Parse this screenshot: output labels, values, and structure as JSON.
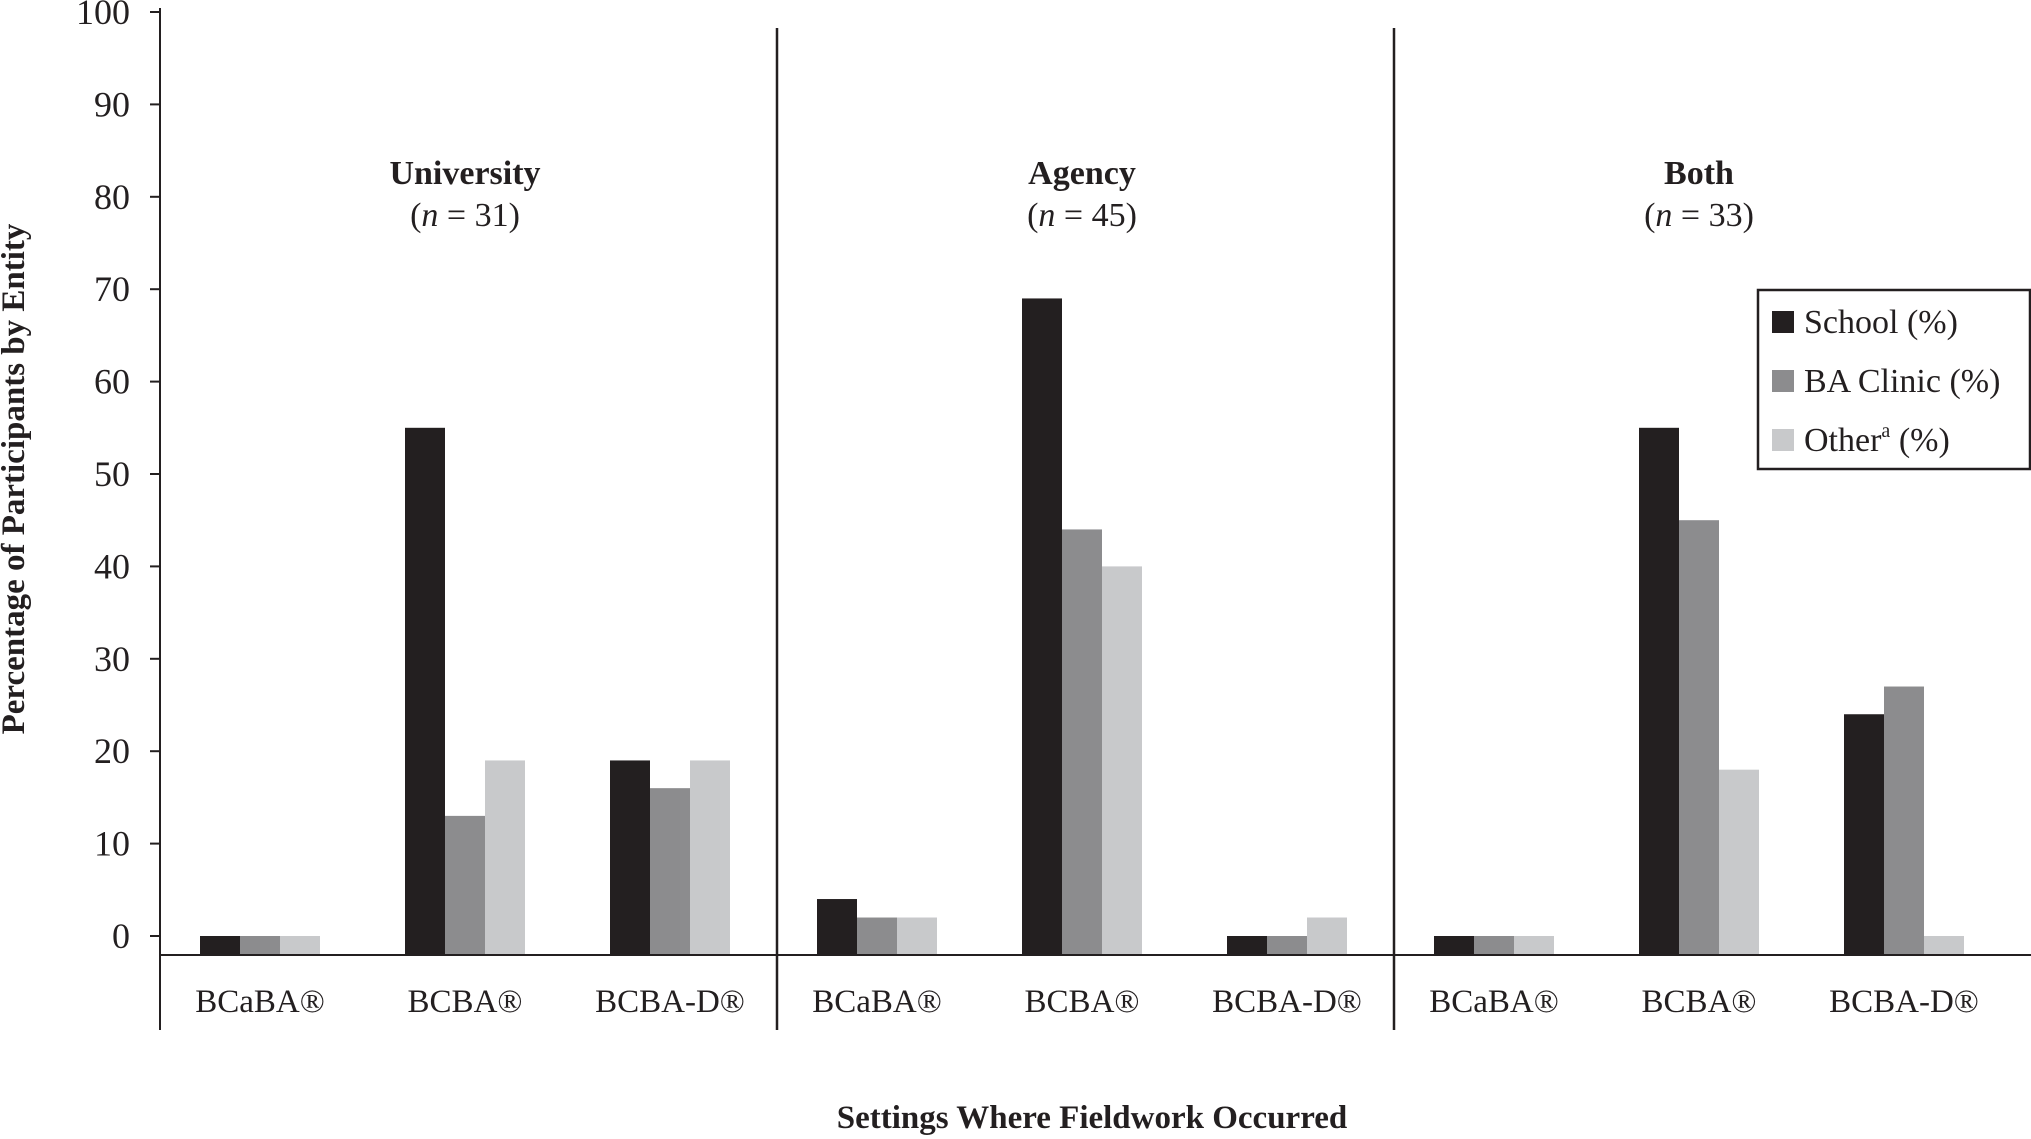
{
  "chart_data": {
    "type": "bar",
    "title": "",
    "ylabel": "Percentage of Participants by Entity",
    "xlabel": "Settings Where Fieldwork Occurred",
    "ylim": [
      0,
      100
    ],
    "yticks": [
      0,
      10,
      20,
      30,
      40,
      50,
      60,
      70,
      80,
      90,
      100
    ],
    "categories": [
      "BCaBA®",
      "BCBA®",
      "BCBA-D®"
    ],
    "legend_position": "top-right",
    "colors": {
      "School (%)": "#231f20",
      "BA Clinic (%)": "#8c8c8e",
      "Other (%)": "#c8c9cb"
    },
    "legend": [
      {
        "name": "School (%)",
        "label": "School (%)",
        "text": "School (%)",
        "prefix": "",
        "sup": "",
        "suffix": ""
      },
      {
        "name": "BA Clinic (%)",
        "label": "BA Clinic (%)",
        "text": "BA Clinic (%)",
        "prefix": "",
        "sup": "",
        "suffix": ""
      },
      {
        "name": "Other (%)",
        "label": "Othera (%)",
        "text": "",
        "prefix": "Other",
        "sup": "a",
        "suffix": " (%)"
      }
    ],
    "panels": [
      {
        "title": "University",
        "n_open": "(",
        "n_var": "n",
        "n_rest": " = 31)",
        "series": [
          {
            "name": "School (%)",
            "values": [
              0,
              55,
              19
            ]
          },
          {
            "name": "BA Clinic (%)",
            "values": [
              0,
              13,
              16
            ]
          },
          {
            "name": "Other (%)",
            "values": [
              0,
              19,
              19
            ]
          }
        ]
      },
      {
        "title": "Agency",
        "n_open": "(",
        "n_var": "n",
        "n_rest": " = 45)",
        "series": [
          {
            "name": "School (%)",
            "values": [
              4,
              69,
              0
            ]
          },
          {
            "name": "BA Clinic (%)",
            "values": [
              2,
              44,
              0
            ]
          },
          {
            "name": "Other (%)",
            "values": [
              2,
              40,
              2
            ]
          }
        ]
      },
      {
        "title": "Both",
        "n_open": "(",
        "n_var": "n",
        "n_rest": " = 33)",
        "series": [
          {
            "name": "School (%)",
            "values": [
              0,
              55,
              24
            ]
          },
          {
            "name": "BA Clinic (%)",
            "values": [
              0,
              45,
              27
            ]
          },
          {
            "name": "Other (%)",
            "values": [
              0,
              18,
              0
            ]
          }
        ]
      }
    ]
  }
}
